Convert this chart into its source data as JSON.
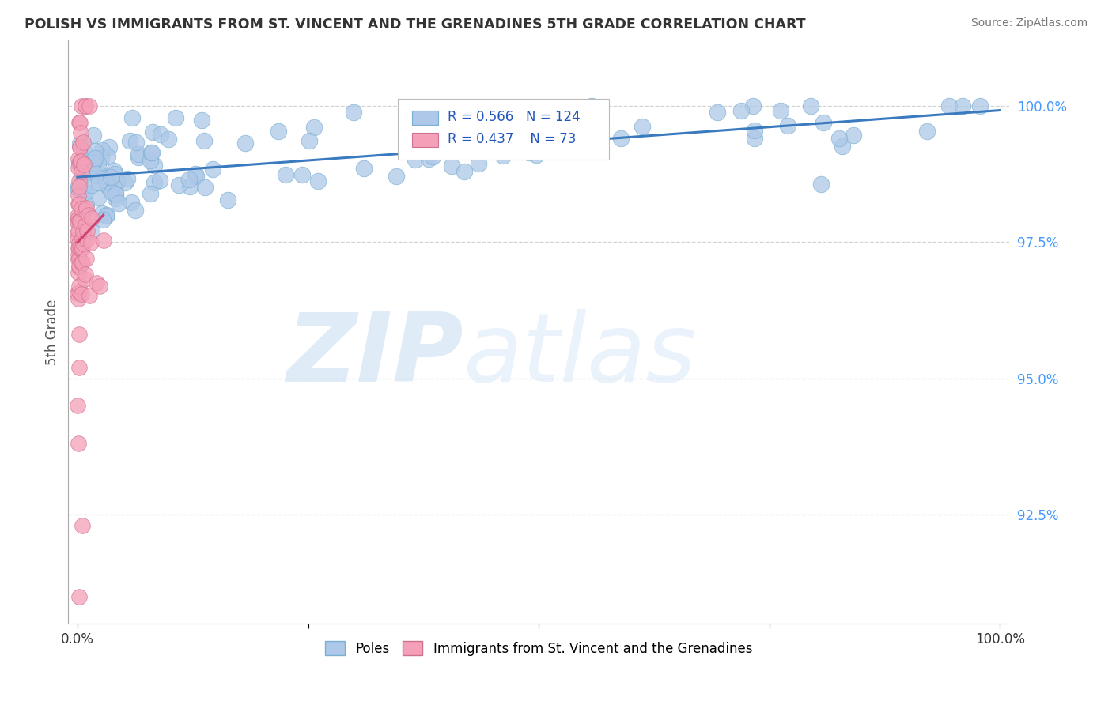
{
  "title": "POLISH VS IMMIGRANTS FROM ST. VINCENT AND THE GRENADINES 5TH GRADE CORRELATION CHART",
  "source": "Source: ZipAtlas.com",
  "ylabel": "5th Grade",
  "yaxis_ticks": [
    92.5,
    95.0,
    97.5,
    100.0
  ],
  "yaxis_labels": [
    "92.5%",
    "95.0%",
    "97.5%",
    "100.0%"
  ],
  "ylim": [
    90.5,
    101.2
  ],
  "xlim": [
    -0.01,
    1.01
  ],
  "blue_R": 0.566,
  "blue_N": 124,
  "pink_R": 0.437,
  "pink_N": 73,
  "blue_color": "#adc8e8",
  "blue_edge_color": "#7aafd4",
  "blue_line_color": "#3a7abf",
  "pink_color": "#f4a0b8",
  "pink_edge_color": "#d07090",
  "pink_line_color": "#d04070",
  "blue_label": "Poles",
  "pink_label": "Immigrants from St. Vincent and the Grenadines",
  "background_color": "#ffffff",
  "grid_color": "#cccccc",
  "title_color": "#333333",
  "source_color": "#777777",
  "ytick_color": "#4499ff",
  "ylabel_color": "#555555"
}
